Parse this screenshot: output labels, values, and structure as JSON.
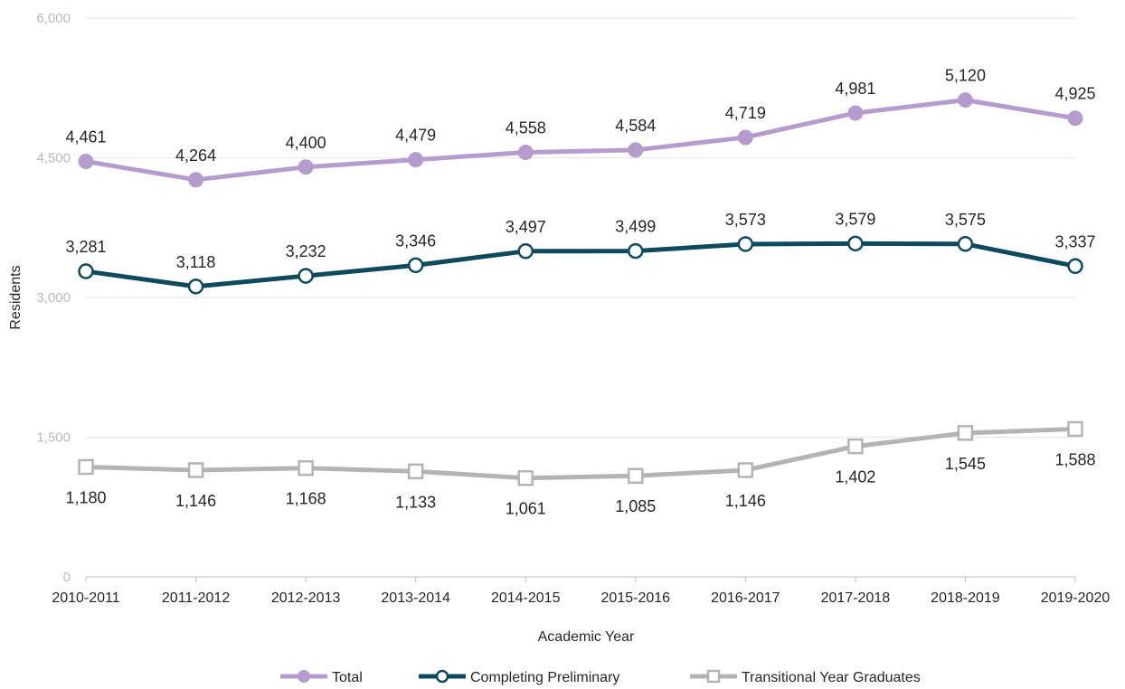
{
  "chart_data": {
    "type": "line",
    "title": "",
    "xlabel": "Academic Year",
    "ylabel": "Residents",
    "ylim": [
      0,
      6000
    ],
    "yticks": [
      0,
      1500,
      3000,
      4500,
      6000
    ],
    "ytick_labels": [
      "0",
      "1,500",
      "3,000",
      "4,500",
      "6,000"
    ],
    "grid": true,
    "legend": "bottom",
    "categories": [
      "2010-2011",
      "2011-2012",
      "2012-2013",
      "2013-2014",
      "2014-2015",
      "2015-2016",
      "2016-2017",
      "2017-2018",
      "2018-2019",
      "2019-2020"
    ],
    "series": [
      {
        "name": "Total",
        "color": "#b49ccc",
        "marker": "filled-circle",
        "label_position": "above",
        "values": [
          4461,
          4264,
          4400,
          4479,
          4558,
          4584,
          4719,
          4981,
          5120,
          4925
        ],
        "labels": [
          "4,461",
          "4,264",
          "4,400",
          "4,479",
          "4,558",
          "4,584",
          "4,719",
          "4,981",
          "5,120",
          "4,925"
        ]
      },
      {
        "name": "Completing Preliminary",
        "color": "#0c4a5c",
        "marker": "open-circle",
        "label_position": "above",
        "values": [
          3281,
          3118,
          3232,
          3346,
          3497,
          3499,
          3573,
          3579,
          3575,
          3337
        ],
        "labels": [
          "3,281",
          "3,118",
          "3,232",
          "3,346",
          "3,497",
          "3,499",
          "3,573",
          "3,579",
          "3,575",
          "3,337"
        ]
      },
      {
        "name": "Transitional Year Graduates",
        "color": "#b4b4b4",
        "marker": "open-square",
        "label_position": "below",
        "values": [
          1180,
          1146,
          1168,
          1133,
          1061,
          1085,
          1146,
          1402,
          1545,
          1588
        ],
        "labels": [
          "1,180",
          "1,146",
          "1,168",
          "1,133",
          "1,061",
          "1,085",
          "1,146",
          "1,402",
          "1,545",
          "1,588"
        ]
      }
    ]
  }
}
